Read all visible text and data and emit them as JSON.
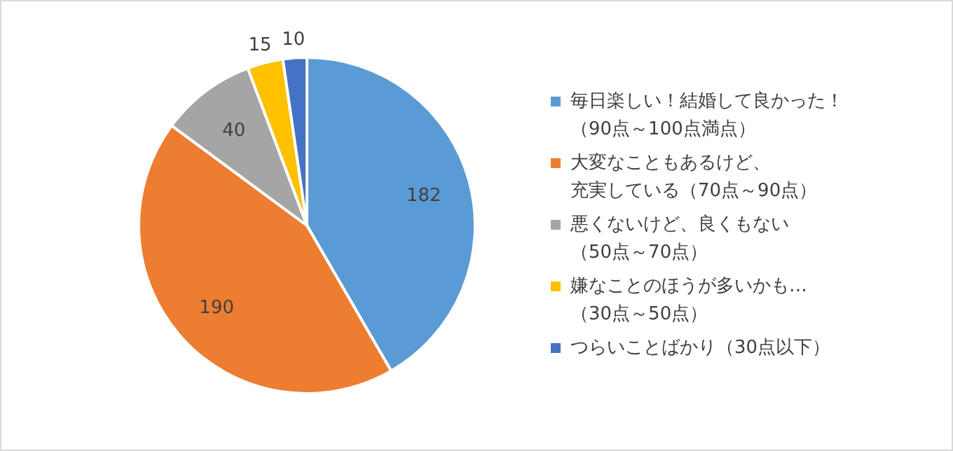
{
  "chart_data": {
    "type": "pie",
    "categories": [
      "毎日楽しい！結婚して良かった！（90点～100点満点）",
      "大変なこともあるけど、充実している（70点～90点）",
      "悪くないけど、良くもない（50点～70点）",
      "嫌なことのほうが多いかも…（30点～50点）",
      "つらいことばかり（30点以下）"
    ],
    "values": [
      182,
      190,
      40,
      15,
      10
    ],
    "colors": [
      "#5b9bd5",
      "#ed7d31",
      "#a5a5a5",
      "#ffc000",
      "#4472c4"
    ],
    "data_labels": true,
    "legend": "right"
  }
}
